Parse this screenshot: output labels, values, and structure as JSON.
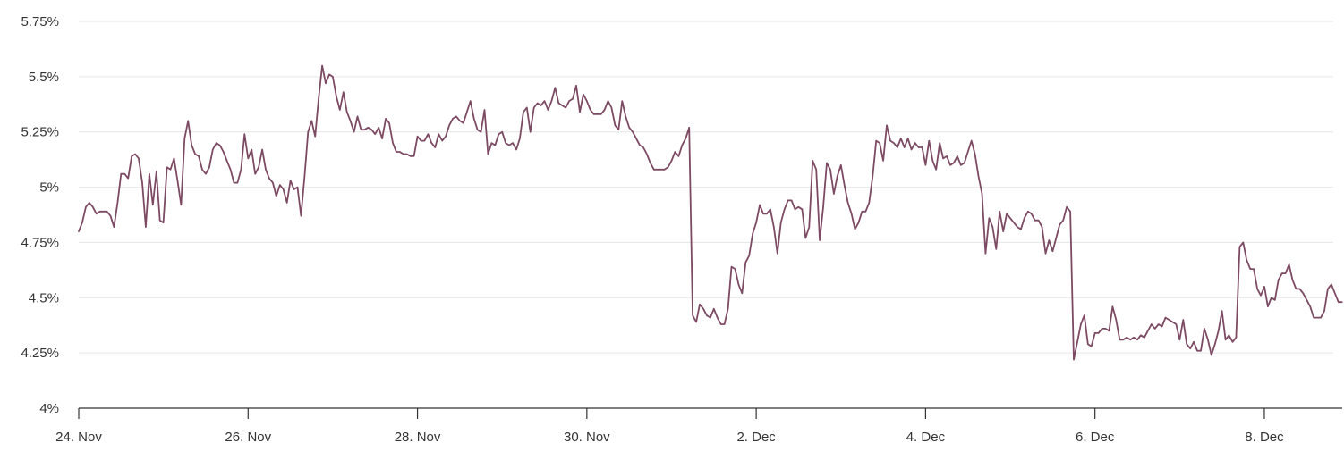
{
  "styles": {
    "background": "#ffffff",
    "line_color": "#7d4a63",
    "grid_color": "#e6e6e6",
    "axis_color": "#333333",
    "label_color": "#333333"
  },
  "chart_data": {
    "type": "line",
    "title": "",
    "legend": "none",
    "grid": true,
    "x_axis": {
      "tick_labels": [
        "24. Nov",
        "26. Nov",
        "28. Nov",
        "30. Nov",
        "2. Dec",
        "4. Dec",
        "6. Dec",
        "8. Dec"
      ],
      "tick_interval_days": 2,
      "range_days": [
        0,
        14.9
      ]
    },
    "y_axis": {
      "min": 4,
      "max": 5.75,
      "tick_step": 0.25,
      "tick_labels": [
        "4%",
        "4.25%",
        "4.5%",
        "4.75%",
        "5%",
        "5.25%",
        "5.5%",
        "5.75%"
      ]
    },
    "series": [
      {
        "name": "rate-percent",
        "color": "#7d4a63",
        "start": "24. Nov 00:00",
        "interval_hours": 1,
        "values_pct": [
          4.8,
          4.84,
          4.91,
          4.93,
          4.91,
          4.88,
          4.89,
          4.89,
          4.89,
          4.87,
          4.82,
          4.93,
          5.06,
          5.06,
          5.04,
          5.14,
          5.15,
          5.13,
          5.02,
          4.82,
          5.06,
          4.92,
          5.07,
          4.85,
          4.84,
          5.09,
          5.08,
          5.13,
          5.03,
          4.92,
          5.22,
          5.3,
          5.19,
          5.15,
          5.14,
          5.08,
          5.06,
          5.09,
          5.17,
          5.2,
          5.19,
          5.16,
          5.12,
          5.08,
          5.02,
          5.02,
          5.08,
          5.24,
          5.13,
          5.17,
          5.06,
          5.09,
          5.17,
          5.08,
          5.04,
          5.02,
          4.96,
          5.01,
          4.99,
          4.93,
          5.03,
          4.99,
          5.0,
          4.87,
          5.05,
          5.25,
          5.3,
          5.23,
          5.4,
          5.55,
          5.47,
          5.51,
          5.5,
          5.41,
          5.35,
          5.43,
          5.34,
          5.3,
          5.25,
          5.32,
          5.26,
          5.26,
          5.27,
          5.26,
          5.24,
          5.27,
          5.22,
          5.31,
          5.29,
          5.2,
          5.16,
          5.16,
          5.15,
          5.15,
          5.14,
          5.14,
          5.23,
          5.21,
          5.21,
          5.24,
          5.2,
          5.18,
          5.24,
          5.21,
          5.23,
          5.28,
          5.31,
          5.32,
          5.3,
          5.29,
          5.34,
          5.39,
          5.31,
          5.26,
          5.25,
          5.35,
          5.15,
          5.2,
          5.19,
          5.24,
          5.25,
          5.2,
          5.19,
          5.2,
          5.17,
          5.22,
          5.34,
          5.36,
          5.25,
          5.36,
          5.38,
          5.37,
          5.39,
          5.35,
          5.39,
          5.45,
          5.38,
          5.37,
          5.36,
          5.39,
          5.4,
          5.46,
          5.34,
          5.42,
          5.39,
          5.35,
          5.33,
          5.33,
          5.33,
          5.35,
          5.39,
          5.36,
          5.28,
          5.26,
          5.39,
          5.32,
          5.27,
          5.25,
          5.22,
          5.19,
          5.18,
          5.15,
          5.11,
          5.08,
          5.08,
          5.08,
          5.08,
          5.09,
          5.12,
          5.16,
          5.14,
          5.19,
          5.22,
          5.27,
          4.42,
          4.39,
          4.47,
          4.45,
          4.42,
          4.41,
          4.45,
          4.41,
          4.38,
          4.38,
          4.45,
          4.64,
          4.63,
          4.56,
          4.52,
          4.66,
          4.69,
          4.79,
          4.84,
          4.92,
          4.88,
          4.88,
          4.9,
          4.82,
          4.7,
          4.84,
          4.9,
          4.94,
          4.94,
          4.9,
          4.91,
          4.9,
          4.77,
          4.82,
          5.12,
          5.08,
          4.76,
          4.91,
          5.11,
          5.08,
          4.97,
          5.05,
          5.1,
          5.01,
          4.93,
          4.88,
          4.81,
          4.84,
          4.89,
          4.89,
          4.93,
          5.05,
          5.21,
          5.2,
          5.12,
          5.28,
          5.21,
          5.2,
          5.18,
          5.22,
          5.18,
          5.22,
          5.17,
          5.2,
          5.18,
          5.18,
          5.1,
          5.21,
          5.12,
          5.08,
          5.2,
          5.13,
          5.14,
          5.1,
          5.11,
          5.14,
          5.1,
          5.11,
          5.16,
          5.21,
          5.15,
          5.05,
          4.97,
          4.7,
          4.86,
          4.82,
          4.72,
          4.89,
          4.8,
          4.88,
          4.86,
          4.84,
          4.82,
          4.81,
          4.86,
          4.89,
          4.88,
          4.85,
          4.85,
          4.82,
          4.7,
          4.76,
          4.71,
          4.77,
          4.83,
          4.85,
          4.91,
          4.89,
          4.22,
          4.3,
          4.38,
          4.42,
          4.29,
          4.28,
          4.34,
          4.34,
          4.36,
          4.36,
          4.35,
          4.46,
          4.4,
          4.31,
          4.31,
          4.32,
          4.31,
          4.32,
          4.31,
          4.33,
          4.32,
          4.35,
          4.38,
          4.36,
          4.38,
          4.37,
          4.41,
          4.4,
          4.39,
          4.38,
          4.31,
          4.4,
          4.29,
          4.27,
          4.3,
          4.26,
          4.26,
          4.36,
          4.31,
          4.24,
          4.29,
          4.35,
          4.44,
          4.31,
          4.33,
          4.3,
          4.32,
          4.73,
          4.75,
          4.67,
          4.63,
          4.63,
          4.54,
          4.51,
          4.55,
          4.46,
          4.5,
          4.49,
          4.58,
          4.61,
          4.61,
          4.65,
          4.58,
          4.54,
          4.54,
          4.52,
          4.49,
          4.46,
          4.41,
          4.41,
          4.41,
          4.44,
          4.54,
          4.56,
          4.52,
          4.48,
          4.48
        ]
      }
    ]
  }
}
